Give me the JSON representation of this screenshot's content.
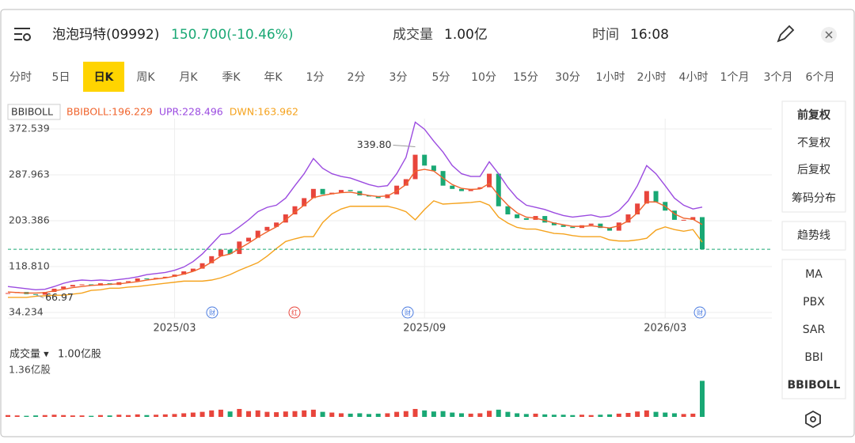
{
  "header": {
    "name": "泡泡玛特(09992)",
    "price": "150.700(-10.46%)",
    "volume_label": "成交量",
    "volume": "1.00亿",
    "time_label": "时间",
    "time": "16:08"
  },
  "periods": [
    "分时",
    "5日",
    "日K",
    "周K",
    "月K",
    "季K",
    "年K",
    "1分",
    "2分",
    "3分",
    "5分",
    "10分",
    "15分",
    "30分",
    "1小时",
    "2小时",
    "4小时",
    "1个月",
    "3个月",
    "6个月"
  ],
  "active_period": 2,
  "right_menu": [
    "前复权",
    "不复权",
    "后复权",
    "筹码分布",
    "趋势线",
    "MA",
    "PBX",
    "SAR",
    "BBI",
    "BBIBOLL"
  ],
  "events": [
    "财",
    "红",
    "财",
    "财"
  ],
  "chart_data": {
    "type": "candlestick",
    "indicator": "BBIBOLL",
    "categories": [
      null,
      null,
      null,
      null,
      null,
      null,
      null,
      null,
      null,
      null,
      null,
      null,
      null,
      null,
      null,
      null,
      null,
      null,
      "2025/03",
      null,
      null,
      null,
      null,
      null,
      null,
      null,
      null,
      null,
      null,
      null,
      null,
      null,
      null,
      null,
      null,
      null,
      null,
      null,
      null,
      null,
      null,
      null,
      null,
      null,
      null,
      "2025/09",
      null,
      null,
      null,
      null,
      null,
      null,
      null,
      null,
      null,
      null,
      null,
      null,
      null,
      null,
      null,
      null,
      null,
      null,
      null,
      null,
      null,
      null,
      null,
      null,
      null,
      "2026/03",
      null,
      null,
      null,
      null
    ],
    "close": [
      70,
      72,
      68,
      67,
      72,
      78,
      82,
      85,
      86,
      84,
      88,
      85,
      90,
      92,
      97,
      96,
      98,
      100,
      104,
      110,
      115,
      125,
      138,
      150,
      142,
      165,
      172,
      185,
      192,
      200,
      215,
      230,
      245,
      262,
      252,
      255,
      260,
      258,
      250,
      248,
      245,
      252,
      268,
      280,
      325,
      305,
      295,
      268,
      262,
      258,
      262,
      265,
      290,
      230,
      215,
      208,
      205,
      212,
      200,
      195,
      192,
      190,
      195,
      198,
      190,
      185,
      200,
      215,
      235,
      258,
      238,
      222,
      205,
      205,
      210,
      150.7
    ],
    "up_color": "#e8453c",
    "down_color": "#19a874",
    "high": {
      "value": 339.8,
      "label": "339.80"
    },
    "low": {
      "value": 66.97,
      "label": "66.97"
    },
    "series": [
      {
        "name": "BBIBOLL:196.229",
        "color": "#f0642d",
        "values": [
          72,
          71,
          70,
          70,
          71,
          74,
          77,
          80,
          82,
          84,
          85,
          86,
          87,
          89,
          91,
          94,
          96,
          98,
          101,
          105,
          110,
          117,
          127,
          138,
          142,
          152,
          162,
          173,
          183,
          192,
          205,
          219,
          232,
          246,
          250,
          253,
          255,
          256,
          253,
          250,
          248,
          249,
          258,
          270,
          295,
          298,
          295,
          282,
          270,
          263,
          261,
          262,
          272,
          250,
          232,
          218,
          210,
          208,
          204,
          199,
          196,
          193,
          193,
          194,
          192,
          190,
          194,
          203,
          218,
          238,
          238,
          230,
          216,
          208,
          206,
          196.229
        ]
      },
      {
        "name": "UPR:228.496",
        "color": "#9b4be0",
        "values": [
          82,
          80,
          78,
          76,
          77,
          82,
          88,
          92,
          94,
          93,
          94,
          93,
          95,
          97,
          100,
          104,
          106,
          108,
          112,
          118,
          128,
          142,
          160,
          178,
          180,
          192,
          205,
          220,
          228,
          232,
          245,
          268,
          290,
          318,
          300,
          290,
          285,
          282,
          276,
          270,
          266,
          268,
          290,
          320,
          385,
          372,
          350,
          330,
          305,
          290,
          285,
          285,
          312,
          290,
          265,
          245,
          232,
          228,
          224,
          218,
          213,
          210,
          212,
          214,
          210,
          212,
          222,
          240,
          268,
          305,
          290,
          268,
          245,
          232,
          225,
          228.496
        ]
      },
      {
        "name": "DWN:163.962",
        "color": "#f5a31e",
        "values": [
          62,
          62,
          62,
          64,
          65,
          66,
          66,
          68,
          70,
          75,
          76,
          79,
          79,
          81,
          82,
          84,
          86,
          88,
          90,
          92,
          92,
          92,
          94,
          98,
          104,
          112,
          119,
          126,
          138,
          152,
          165,
          170,
          174,
          174,
          200,
          216,
          225,
          230,
          230,
          230,
          230,
          230,
          226,
          220,
          205,
          224,
          240,
          234,
          235,
          236,
          237,
          239,
          232,
          210,
          199,
          191,
          188,
          188,
          184,
          180,
          179,
          176,
          174,
          174,
          174,
          168,
          166,
          166,
          168,
          171,
          186,
          192,
          187,
          184,
          187,
          163.962
        ]
      }
    ],
    "ylim": [
      24,
      391.5
    ],
    "yticks": [
      372.539,
      287.963,
      203.386,
      {
        "value": 118.81,
        "label": "118.810"
      },
      34.234
    ]
  },
  "volume": {
    "label": "成交量 ▾",
    "value_label": "1.00亿股",
    "ylim": [
      0,
      1.36
    ],
    "yticks": [
      {
        "value": 1.36,
        "label": "1.36亿股"
      }
    ],
    "values": [
      0.05,
      0.04,
      0.03,
      0.04,
      0.05,
      0.06,
      0.05,
      0.04,
      0.04,
      0.03,
      0.05,
      0.04,
      0.06,
      0.05,
      0.07,
      0.05,
      0.06,
      0.07,
      0.08,
      0.1,
      0.12,
      0.14,
      0.18,
      0.2,
      0.15,
      0.22,
      0.16,
      0.18,
      0.14,
      0.13,
      0.15,
      0.16,
      0.18,
      0.2,
      0.14,
      0.12,
      0.1,
      0.09,
      0.1,
      0.08,
      0.09,
      0.1,
      0.14,
      0.16,
      0.22,
      0.18,
      0.15,
      0.16,
      0.12,
      0.1,
      0.09,
      0.1,
      0.17,
      0.2,
      0.14,
      0.1,
      0.08,
      0.09,
      0.07,
      0.06,
      0.06,
      0.05,
      0.06,
      0.05,
      0.06,
      0.07,
      0.09,
      0.11,
      0.15,
      0.18,
      0.14,
      0.12,
      0.1,
      0.08,
      0.09,
      1.0
    ]
  }
}
